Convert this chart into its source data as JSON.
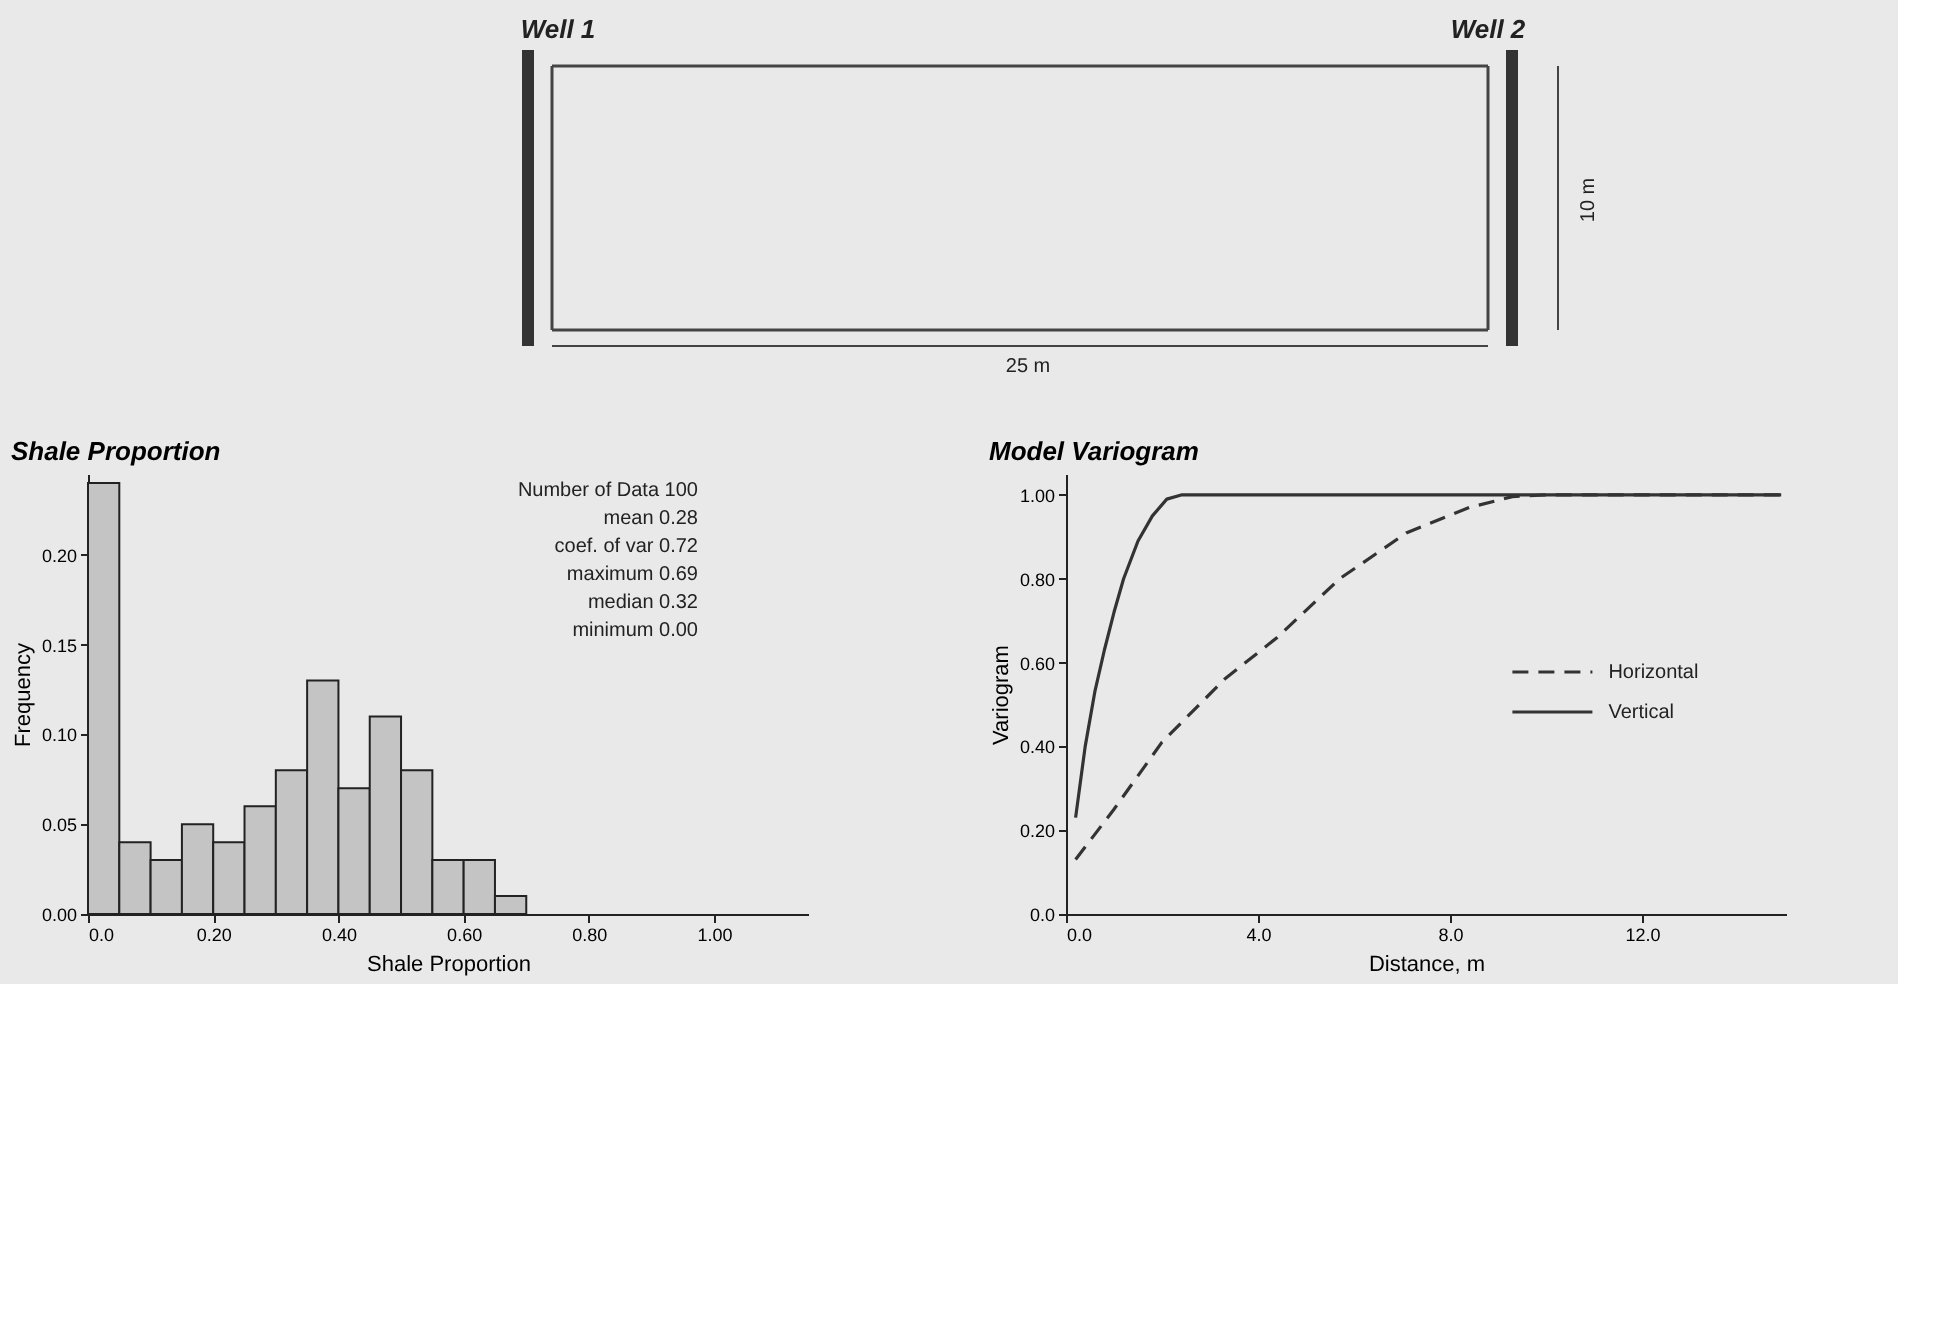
{
  "chart_data": [
    {
      "type": "other",
      "annotations": [
        "Well 1",
        "Well 2",
        "10 m",
        "25 m"
      ]
    },
    {
      "type": "histogram",
      "title": "Shale Proportion",
      "xlabel": "Shale Proportion",
      "ylabel": "Frequency",
      "color": "#c4c4c4",
      "bins": [
        0.0,
        0.05,
        0.1,
        0.15,
        0.2,
        0.25,
        0.3,
        0.35,
        0.4,
        0.45,
        0.5,
        0.55,
        0.6,
        0.65,
        0.7
      ],
      "values": [
        0.24,
        0.04,
        0.03,
        0.05,
        0.04,
        0.06,
        0.08,
        0.13,
        0.07,
        0.11,
        0.08,
        0.03,
        0.03,
        0.01
      ],
      "xlim": [
        0,
        1.15
      ],
      "xticks": [
        {
          "value": 0,
          "label": "0.0"
        },
        {
          "value": 0.2,
          "label": "0.20"
        },
        {
          "value": 0.4,
          "label": "0.40"
        },
        {
          "value": 0.6,
          "label": "0.60"
        },
        {
          "value": 0.8,
          "label": "0.80"
        },
        {
          "value": 1.0,
          "label": "1.00"
        }
      ],
      "ylim": [
        0,
        0.245
      ],
      "yticks": [
        {
          "value": 0,
          "label": "0.00"
        },
        {
          "value": 0.05,
          "label": "0.05"
        },
        {
          "value": 0.1,
          "label": "0.10"
        },
        {
          "value": 0.15,
          "label": "0.15"
        },
        {
          "value": 0.2,
          "label": "0.20"
        }
      ],
      "annotations": [
        "Number of Data 100",
        "mean 0.28",
        "coef. of var 0.72",
        "maximum 0.69",
        "median 0.32",
        "minimum 0.00"
      ]
    },
    {
      "type": "line",
      "title": "Model Variogram",
      "xlabel": "Distance, m",
      "ylabel": "Variogram",
      "legend": "right",
      "xlim": [
        0,
        15
      ],
      "xticks": [
        {
          "value": 0,
          "label": "0.0"
        },
        {
          "value": 4,
          "label": "4.0"
        },
        {
          "value": 8,
          "label": "8.0"
        },
        {
          "value": 12,
          "label": "12.0"
        }
      ],
      "ylim": [
        0,
        1.05
      ],
      "yticks": [
        {
          "value": 0,
          "label": "0.0"
        },
        {
          "value": 0.2,
          "label": "0.20"
        },
        {
          "value": 0.4,
          "label": "0.40"
        },
        {
          "value": 0.6,
          "label": "0.60"
        },
        {
          "value": 0.8,
          "label": "0.80"
        },
        {
          "value": 1.0,
          "label": "1.00"
        }
      ],
      "series": [
        {
          "name": "Horizontal",
          "color": "#333333",
          "line_style": "dashed",
          "x": [
            0.2,
            1.0,
            2.0,
            3.3,
            4.4,
            5.7,
            7.1,
            8.4,
            9.3,
            10.0,
            14.9
          ],
          "values": [
            0.13,
            0.25,
            0.41,
            0.56,
            0.66,
            0.8,
            0.91,
            0.97,
            0.996,
            1.0,
            1.0
          ]
        },
        {
          "name": "Vertical",
          "color": "#333333",
          "line_style": "solid",
          "x": [
            0.2,
            0.4,
            0.6,
            0.8,
            1.0,
            1.2,
            1.5,
            1.8,
            2.1,
            2.4,
            14.9
          ],
          "values": [
            0.23,
            0.4,
            0.53,
            0.63,
            0.72,
            0.8,
            0.89,
            0.95,
            0.99,
            1.0,
            1.0
          ]
        }
      ]
    }
  ]
}
